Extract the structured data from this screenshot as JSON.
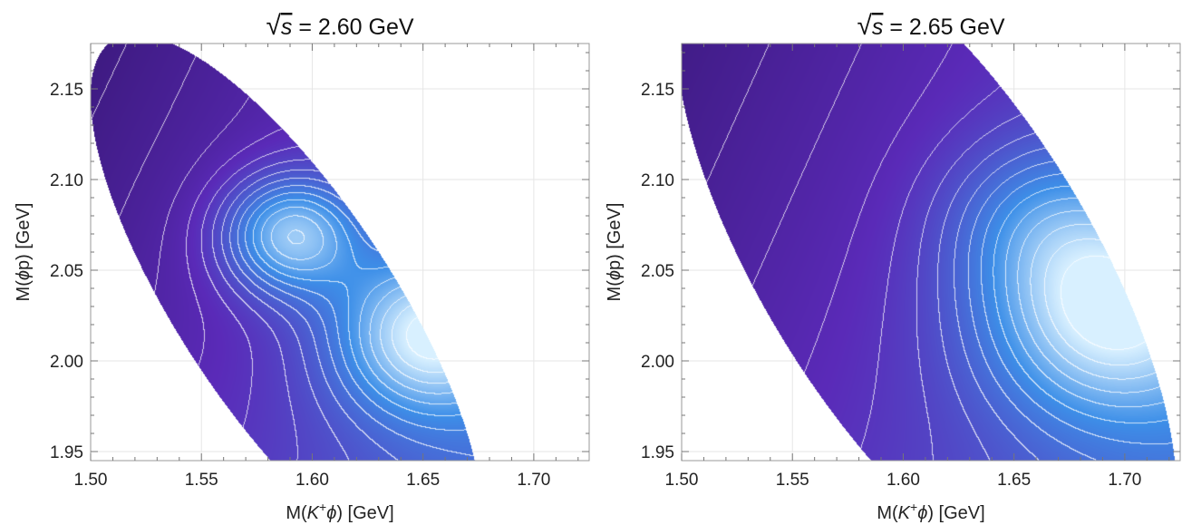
{
  "chart_data": [
    {
      "type": "heatmap",
      "title": {
        "prefix": "√",
        "var": "s",
        "rest": " = 2.60 GeV"
      },
      "xlabel": {
        "pre": "M(",
        "sym": "K",
        "sup": "+",
        "sym2": "ϕ",
        "post": ") [GeV]"
      },
      "ylabel": {
        "pre": "M(",
        "sym": "ϕ",
        "post": "p) [GeV]"
      },
      "xlim": [
        1.5,
        1.725
      ],
      "ylim": [
        1.945,
        2.175
      ],
      "xticks": [
        1.5,
        1.55,
        1.6,
        1.65,
        1.7
      ],
      "yticks": [
        1.95,
        2.0,
        2.05,
        2.1,
        2.15
      ],
      "xtick_labels": [
        "1.50",
        "1.55",
        "1.60",
        "1.65",
        "1.70"
      ],
      "ytick_labels": [
        "1.95",
        "2.00",
        "2.05",
        "2.10",
        "2.15"
      ],
      "grid": true,
      "colors": {
        "low": "#2a0f5a",
        "mid": "#5a2ab8",
        "high": "#3d8fe8",
        "peak": "#d8f0ff",
        "contour": "#ffffff"
      },
      "region": {
        "center": [
          1.588,
          2.031
        ],
        "semi_major": 0.108,
        "semi_minor": 0.038,
        "angle_deg": -38
      },
      "peaks": [
        {
          "x": 1.59,
          "y": 2.07,
          "weight": 0.95,
          "spread": 0.022
        },
        {
          "x": 1.652,
          "y": 2.015,
          "weight": 1.0,
          "spread": 0.03
        }
      ]
    },
    {
      "type": "heatmap",
      "title": {
        "prefix": "√",
        "var": "s",
        "rest": " = 2.65 GeV"
      },
      "xlabel": {
        "pre": "M(",
        "sym": "K",
        "sup": "+",
        "sym2": "ϕ",
        "post": ") [GeV]"
      },
      "ylabel": {
        "pre": "M(",
        "sym": "ϕ",
        "post": "p) [GeV]"
      },
      "xlim": [
        1.5,
        1.725
      ],
      "ylim": [
        1.945,
        2.175
      ],
      "xticks": [
        1.5,
        1.55,
        1.6,
        1.65,
        1.7
      ],
      "yticks": [
        1.95,
        2.0,
        2.05,
        2.1,
        2.15
      ],
      "xtick_labels": [
        "1.50",
        "1.55",
        "1.60",
        "1.65",
        "1.70"
      ],
      "ytick_labels": [
        "1.95",
        "2.00",
        "2.05",
        "2.10",
        "2.15"
      ],
      "grid": true,
      "colors": {
        "low": "#2a0f5a",
        "mid": "#5a2ab8",
        "high": "#3d8fe8",
        "peak": "#d8f0ff",
        "contour": "#ffffff"
      },
      "region": {
        "center": [
          1.61,
          2.055
        ],
        "semi_major": 0.135,
        "semi_minor": 0.058,
        "angle_deg": -37
      },
      "peaks": [
        {
          "x": 1.693,
          "y": 2.028,
          "weight": 1.0,
          "spread": 0.04
        },
        {
          "x": 1.66,
          "y": 2.08,
          "weight": 0.35,
          "spread": 0.03
        }
      ]
    }
  ]
}
